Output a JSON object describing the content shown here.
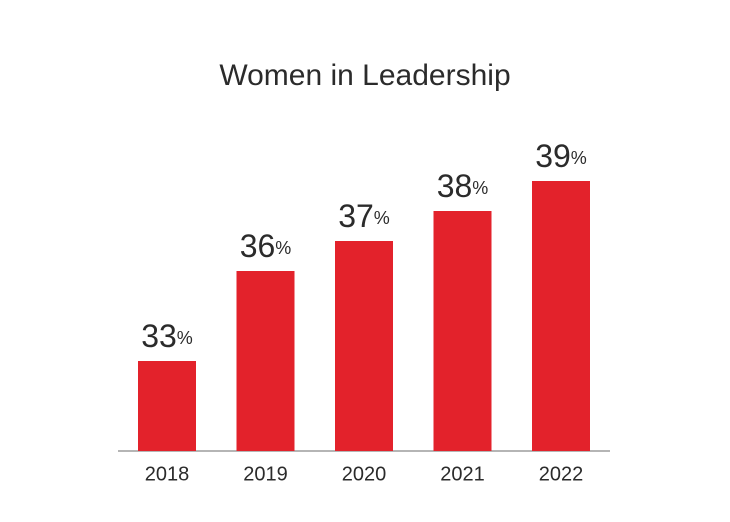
{
  "chart_data": {
    "type": "bar",
    "title": "Women in Leadership",
    "categories": [
      "2018",
      "2019",
      "2020",
      "2021",
      "2022"
    ],
    "values": [
      33,
      36,
      37,
      38,
      39
    ],
    "value_labels": [
      "33%",
      "36%",
      "37%",
      "38%",
      "39%"
    ],
    "color": "#e3222b",
    "ylim": [
      30,
      40
    ]
  }
}
